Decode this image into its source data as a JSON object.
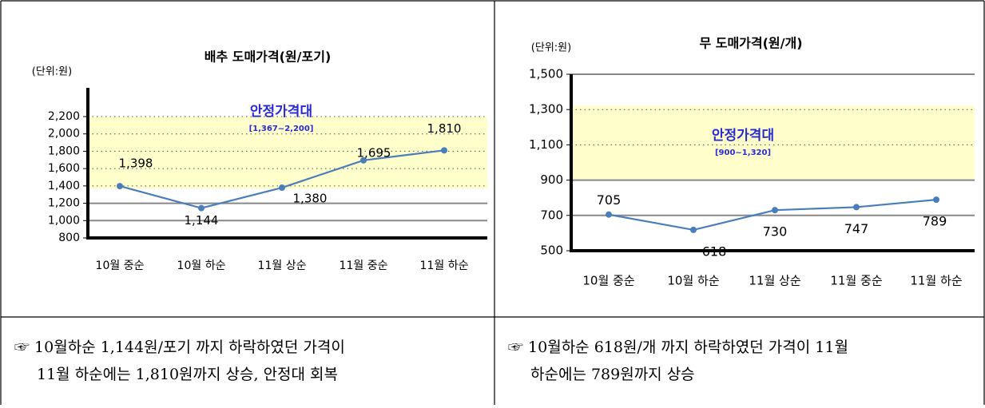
{
  "chart_data": [
    {
      "type": "line",
      "title": "배추 도매가격(원/포기)",
      "unit_label": "(단위:원)",
      "categories": [
        "10월 중순",
        "10월 하순",
        "11월 상순",
        "11월 중순",
        "11월 하순"
      ],
      "values": [
        1398,
        1144,
        1380,
        1695,
        1810
      ],
      "value_labels": [
        "1,398",
        "1,144",
        "1,380",
        "1,695",
        "1,810"
      ],
      "color": "#4a7ebb",
      "ylim": [
        800,
        2200
      ],
      "yticks": [
        800,
        {
          "value": 1000,
          "label": "1,000"
        },
        {
          "value": 1200,
          "label": "1,200"
        },
        {
          "value": 1400,
          "label": "1,400"
        },
        {
          "value": 1600,
          "label": "1,600"
        },
        {
          "value": 1800,
          "label": "1,800"
        },
        {
          "value": 2000,
          "label": "2,000"
        },
        {
          "value": 2200,
          "label": "2,200"
        }
      ],
      "band": [
        1367,
        2200
      ],
      "band_label": "안정가격대",
      "band_range_label": "[1,367~2,200]"
    },
    {
      "type": "line",
      "title": "무 도매가격(원/개)",
      "unit_label": "(단위:원)",
      "categories": [
        "10월 중순",
        "10월 하순",
        "11월 상순",
        "11월 중순",
        "11월 하순"
      ],
      "values": [
        705,
        618,
        730,
        747,
        789
      ],
      "value_labels": [
        "705",
        "618",
        "730",
        "747",
        "789"
      ],
      "color": "#4a7ebb",
      "ylim": [
        500,
        1500
      ],
      "yticks": [
        500,
        700,
        900,
        {
          "value": 1100,
          "label": "1,100"
        },
        {
          "value": 1300,
          "label": "1,300"
        },
        {
          "value": 1500,
          "label": "1,500"
        }
      ],
      "band": [
        900,
        1320
      ],
      "band_label": "안정가격대",
      "band_range_label": "[900~1,320]"
    }
  ],
  "notes": [
    [
      "☞ 10월하순 1,144원/포기 까지 하락하였던 가격이",
      "11월 하순에는 1,810원까지 상승, 안정대 회복"
    ],
    [
      "☞ 10월하순 618원/개 까지 하락하였던 가격이 11월",
      "하순에는 789원까지 상승"
    ]
  ]
}
